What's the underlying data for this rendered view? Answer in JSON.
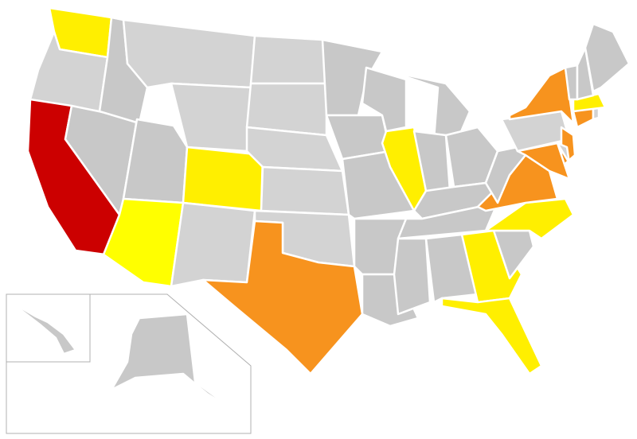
{
  "map": {
    "colors": {
      "high": "#cc0000",
      "medium": "#f7931e",
      "low": "#ffef00",
      "low_alt": "#ffff00",
      "none": "#d3d3d3",
      "none_alt": "#c8c8c8"
    },
    "states": [
      {
        "id": "WA",
        "level": "low"
      },
      {
        "id": "OR",
        "level": "none"
      },
      {
        "id": "CA",
        "level": "high"
      },
      {
        "id": "NV",
        "level": "none_alt"
      },
      {
        "id": "ID",
        "level": "none_alt"
      },
      {
        "id": "MT",
        "level": "none"
      },
      {
        "id": "WY",
        "level": "none"
      },
      {
        "id": "UT",
        "level": "none_alt"
      },
      {
        "id": "CO",
        "level": "low"
      },
      {
        "id": "AZ",
        "level": "low_alt"
      },
      {
        "id": "NM",
        "level": "none"
      },
      {
        "id": "ND",
        "level": "none"
      },
      {
        "id": "SD",
        "level": "none"
      },
      {
        "id": "NE",
        "level": "none"
      },
      {
        "id": "KS",
        "level": "none"
      },
      {
        "id": "OK",
        "level": "none"
      },
      {
        "id": "TX",
        "level": "medium"
      },
      {
        "id": "MN",
        "level": "none_alt"
      },
      {
        "id": "IA",
        "level": "none_alt"
      },
      {
        "id": "MO",
        "level": "none_alt"
      },
      {
        "id": "AR",
        "level": "none_alt"
      },
      {
        "id": "LA",
        "level": "none_alt"
      },
      {
        "id": "WI",
        "level": "none_alt"
      },
      {
        "id": "IL",
        "level": "low"
      },
      {
        "id": "MI",
        "level": "none_alt"
      },
      {
        "id": "IN",
        "level": "none_alt"
      },
      {
        "id": "OH",
        "level": "none_alt"
      },
      {
        "id": "KY",
        "level": "none_alt"
      },
      {
        "id": "TN",
        "level": "none_alt"
      },
      {
        "id": "MS",
        "level": "none_alt"
      },
      {
        "id": "AL",
        "level": "none_alt"
      },
      {
        "id": "GA",
        "level": "low"
      },
      {
        "id": "FL",
        "level": "low"
      },
      {
        "id": "SC",
        "level": "none_alt"
      },
      {
        "id": "NC",
        "level": "low"
      },
      {
        "id": "VA",
        "level": "medium"
      },
      {
        "id": "WV",
        "level": "none_alt"
      },
      {
        "id": "PA",
        "level": "none"
      },
      {
        "id": "NY",
        "level": "medium"
      },
      {
        "id": "NJ",
        "level": "medium"
      },
      {
        "id": "MD",
        "level": "medium"
      },
      {
        "id": "DE",
        "level": "none"
      },
      {
        "id": "CT",
        "level": "medium"
      },
      {
        "id": "RI",
        "level": "none"
      },
      {
        "id": "MA",
        "level": "low"
      },
      {
        "id": "VT",
        "level": "none_alt"
      },
      {
        "id": "NH",
        "level": "none_alt"
      },
      {
        "id": "ME",
        "level": "none_alt"
      },
      {
        "id": "AK",
        "level": "none_alt"
      },
      {
        "id": "HI",
        "level": "none_alt"
      }
    ]
  }
}
